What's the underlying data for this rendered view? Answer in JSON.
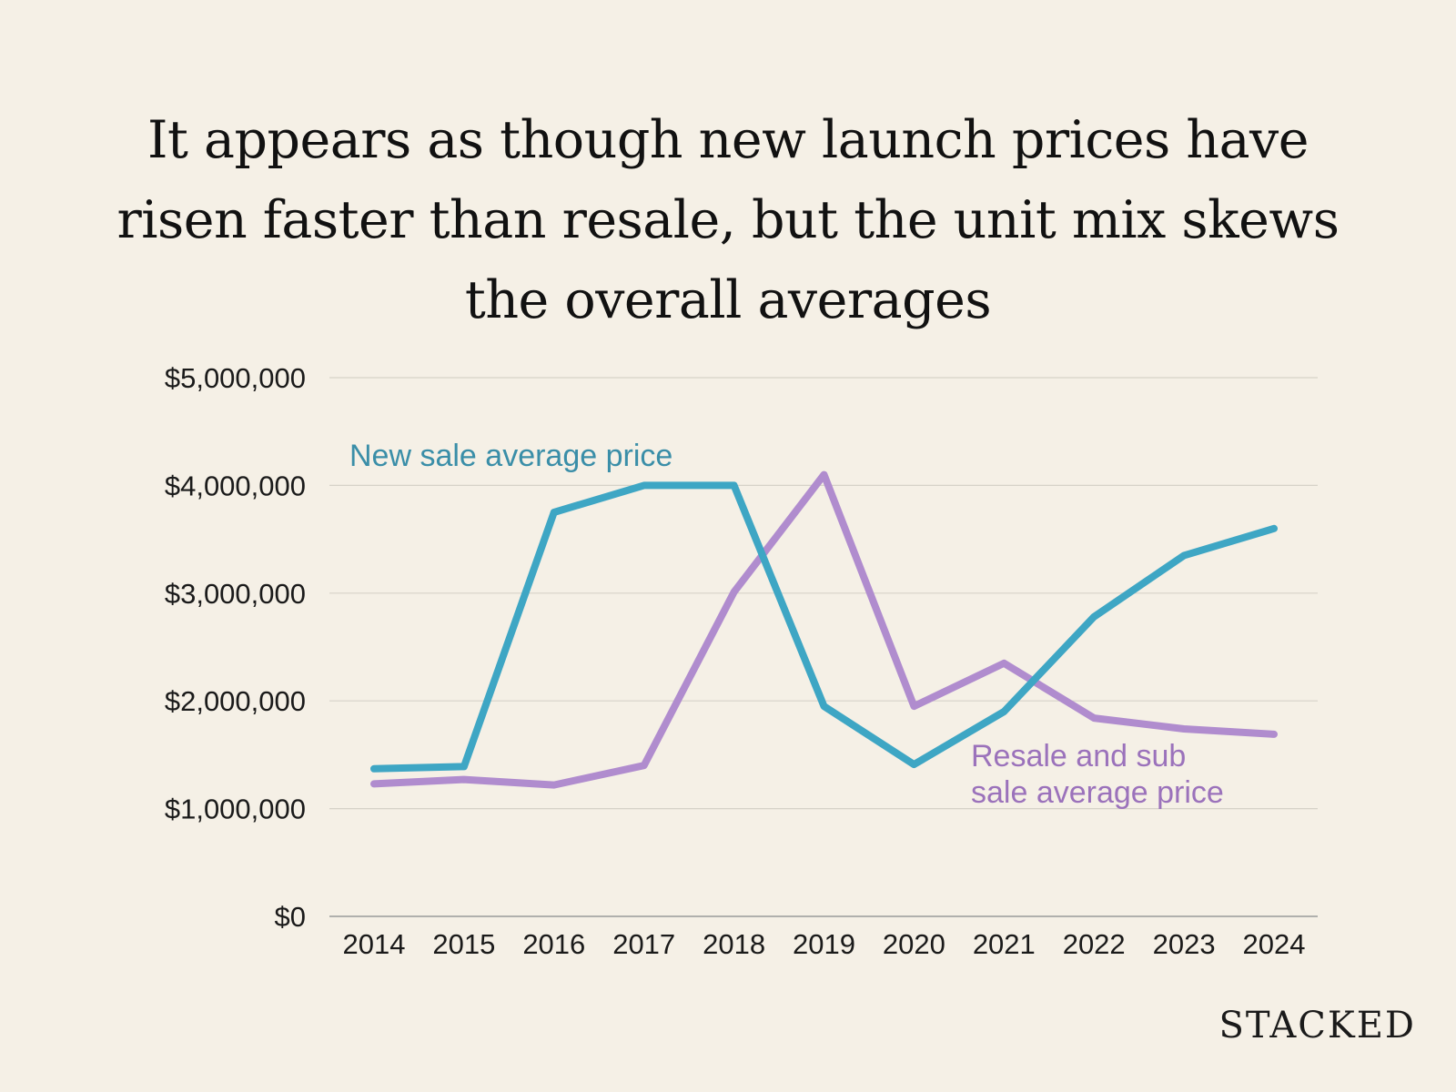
{
  "chart_data": {
    "type": "line",
    "title": "It appears as though new launch prices have risen faster than resale, but the unit mix skews the overall averages",
    "categories": [
      "2014",
      "2015",
      "2016",
      "2017",
      "2018",
      "2019",
      "2020",
      "2021",
      "2022",
      "2023",
      "2024"
    ],
    "series": [
      {
        "name": "New sale average  price",
        "color": "#3ea6c4",
        "label_color": "#3a8ea8",
        "values": [
          1370000,
          1390000,
          3750000,
          4000000,
          4000000,
          1950000,
          1410000,
          1900000,
          2780000,
          3350000,
          3600000
        ]
      },
      {
        "name": "Resale and sub sale average price",
        "name_lines": [
          "Resale and sub",
          "sale average price"
        ],
        "color": "#b08cce",
        "label_color": "#9b72bb",
        "values": [
          1230000,
          1270000,
          1220000,
          1400000,
          3010000,
          4100000,
          1950000,
          2350000,
          1840000,
          1740000,
          1690000
        ]
      }
    ],
    "yticks": [
      0,
      1000000,
      2000000,
      3000000,
      4000000,
      5000000
    ],
    "ytick_labels": [
      "$0",
      "$1,000,000",
      "$2,000,000",
      "$3,000,000",
      "$4,000,000",
      "$5,000,000"
    ],
    "ylim": [
      0,
      5000000
    ],
    "xlabel": "",
    "ylabel": "",
    "grid": true
  },
  "brand": "STACKED"
}
